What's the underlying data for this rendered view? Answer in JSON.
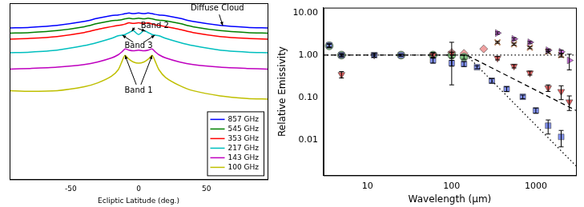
{
  "chart_data": [
    {
      "type": "line",
      "x_label": "Ecliptic Latitude (deg.)",
      "x": [
        -95,
        -80,
        -60,
        -40,
        -30,
        -20,
        -15,
        -12,
        -10,
        -7,
        -4,
        0,
        4,
        7,
        10,
        12,
        15,
        20,
        30,
        40,
        60,
        80,
        95
      ],
      "series": [
        {
          "name": "857 GHz",
          "color": "#0000ff",
          "values": [
            8.1,
            8.15,
            8.3,
            8.6,
            8.85,
            9.05,
            9.1,
            9.15,
            9.2,
            9.25,
            9.2,
            9.25,
            9.2,
            9.25,
            9.2,
            9.15,
            9.1,
            9.05,
            8.85,
            8.6,
            8.3,
            8.15,
            8.1
          ]
        },
        {
          "name": "545 GHz",
          "color": "#008000",
          "values": [
            7.7,
            7.75,
            7.9,
            8.2,
            8.45,
            8.65,
            8.7,
            8.75,
            8.8,
            8.85,
            8.8,
            8.85,
            8.8,
            8.85,
            8.8,
            8.75,
            8.7,
            8.65,
            8.45,
            8.2,
            7.9,
            7.75,
            7.7
          ]
        },
        {
          "name": "353 GHz",
          "color": "#ff0000",
          "values": [
            7.25,
            7.3,
            7.45,
            7.75,
            8.0,
            8.2,
            8.3,
            8.35,
            8.4,
            8.5,
            8.45,
            8.5,
            8.45,
            8.5,
            8.4,
            8.35,
            8.3,
            8.2,
            8.0,
            7.75,
            7.45,
            7.3,
            7.25
          ]
        },
        {
          "name": "217 GHz",
          "color": "#00bfbf",
          "values": [
            6.2,
            6.25,
            6.4,
            6.75,
            7.0,
            7.3,
            7.5,
            7.55,
            7.6,
            7.75,
            7.9,
            7.6,
            7.9,
            7.75,
            7.6,
            7.55,
            7.5,
            7.3,
            7.0,
            6.75,
            6.4,
            6.25,
            6.2
          ]
        },
        {
          "name": "143 GHz",
          "color": "#bf00bf",
          "values": [
            4.95,
            5.0,
            5.1,
            5.3,
            5.5,
            5.8,
            6.05,
            6.3,
            6.5,
            6.4,
            6.35,
            6.4,
            6.35,
            6.4,
            6.5,
            6.3,
            6.05,
            5.8,
            5.5,
            5.3,
            5.1,
            5.0,
            4.95
          ]
        },
        {
          "name": "100 GHz",
          "color": "#bfbf00",
          "values": [
            3.3,
            3.25,
            3.3,
            3.6,
            3.9,
            4.4,
            4.9,
            5.6,
            6.0,
            5.7,
            5.5,
            5.4,
            5.5,
            5.7,
            6.0,
            5.6,
            4.9,
            4.3,
            3.7,
            3.3,
            2.9,
            2.7,
            2.65
          ]
        }
      ],
      "xlim": [
        -95,
        95
      ],
      "xticks": [
        -50,
        0,
        50
      ],
      "ylim": [
        -3.5,
        10
      ],
      "tick_labels": "x",
      "grid": false,
      "legend": "lower right",
      "annotations": [
        {
          "text": "Diffuse Cloud",
          "x": 58,
          "y": 9.6,
          "arrows": [
            {
              "x": 62,
              "y": 8.28
            }
          ]
        },
        {
          "text": "Band 2",
          "x": 12,
          "y": 8.25,
          "arrows": [
            {
              "x": -5,
              "y": 7.85
            },
            {
              "x": 5,
              "y": 7.85
            }
          ]
        },
        {
          "text": "Band 3",
          "x": 0,
          "y": 6.75,
          "arrows": [
            {
              "x": -12,
              "y": 7.55
            },
            {
              "x": 12,
              "y": 7.55
            }
          ]
        },
        {
          "text": "Band 1",
          "x": 0,
          "y": 3.3,
          "arrows": [
            {
              "x": -10,
              "y": 6.0
            },
            {
              "x": 10,
              "y": 6.0
            }
          ]
        }
      ]
    },
    {
      "type": "scatter",
      "log": true,
      "x_label": "Wavelength (μm)",
      "y_label": "Relative Emissivity",
      "xlim": [
        3,
        3000
      ],
      "xticks": [
        10,
        100,
        1000
      ],
      "ylim": [
        0.0015,
        13
      ],
      "yticks": [
        {
          "value": 0.01,
          "label": "0.01"
        },
        {
          "value": 0.1,
          "label": "0.10"
        },
        {
          "value": 1,
          "label": "1.00"
        },
        {
          "value": 10,
          "label": "10.00"
        }
      ],
      "grid": false,
      "series": [
        {
          "type": "line",
          "line_style": "dotted",
          "color": "#000000",
          "x": [
            3,
            3000
          ],
          "values": [
            1,
            1
          ]
        },
        {
          "type": "line",
          "line_style": "dashed",
          "color": "#000000",
          "x": [
            3,
            150,
            300,
            1000,
            3000
          ],
          "values": [
            1,
            1,
            0.5,
            0.15,
            0.05
          ]
        },
        {
          "type": "line",
          "line_style": "dotted",
          "color": "#000000",
          "x": [
            150,
            300,
            1000,
            3000
          ],
          "values": [
            1,
            0.25,
            0.0225,
            0.0025
          ]
        },
        {
          "marker": "square",
          "color": "#7f8ff0",
          "x": [
            3.5,
            4.9,
            12,
            25,
            60,
            100,
            140,
            200,
            300,
            450,
            700,
            1000,
            1400,
            2000
          ],
          "values": [
            1.7,
            1.0,
            1.0,
            1.0,
            0.75,
            0.65,
            0.62,
            0.52,
            0.25,
            0.16,
            0.105,
            0.05,
            0.022,
            0.012
          ],
          "errors": [
            0.15,
            0.08,
            0.1,
            0.06,
            0.1,
            0.1,
            0.08,
            0.04,
            0.03,
            0.02,
            0.01,
            0.007,
            0.008,
            0.005
          ]
        },
        {
          "marker": "triangle_down",
          "color": "#e06060",
          "x": [
            4.9,
            12,
            60,
            100,
            350,
            550,
            850,
            1400,
            2000,
            2500
          ],
          "values": [
            0.35,
            1.0,
            1.0,
            1.1,
            0.85,
            0.55,
            0.38,
            0.17,
            0.14,
            0.08
          ],
          "errors": [
            0.06,
            0.1,
            0.15,
            0.9,
            0.08,
            0.05,
            0.04,
            0.03,
            0.05,
            0.03
          ]
        },
        {
          "marker": "circle",
          "color": "#80c080",
          "x": [
            3.5,
            4.9,
            25,
            60,
            100,
            140
          ],
          "values": [
            1.65,
            1.0,
            1.0,
            1.0,
            1.0,
            0.9
          ],
          "errors": [
            0.15,
            0.08,
            0.05,
            0.1,
            0.15,
            0.1
          ]
        },
        {
          "marker": "diamond",
          "color": "#f0a0a0",
          "x": [
            100,
            140,
            240
          ],
          "values": [
            1.15,
            1.1,
            1.4
          ]
        },
        {
          "marker": "triangle_right",
          "color": "#d070e0",
          "x": [
            350,
            550,
            850,
            1400,
            2000,
            2500
          ],
          "values": [
            3.3,
            2.4,
            2.0,
            1.3,
            1.2,
            0.75
          ],
          "errors": [
            0.2,
            0.15,
            0.1,
            0.08,
            0.1,
            0.3
          ]
        },
        {
          "marker": "x",
          "color": "#b08060",
          "x": [
            350,
            550,
            850,
            1400,
            2000
          ],
          "values": [
            2.0,
            1.8,
            1.5,
            1.2,
            1.0
          ],
          "errors": [
            0.1,
            0.1,
            0.08,
            0.08,
            0.1
          ]
        }
      ]
    }
  ]
}
